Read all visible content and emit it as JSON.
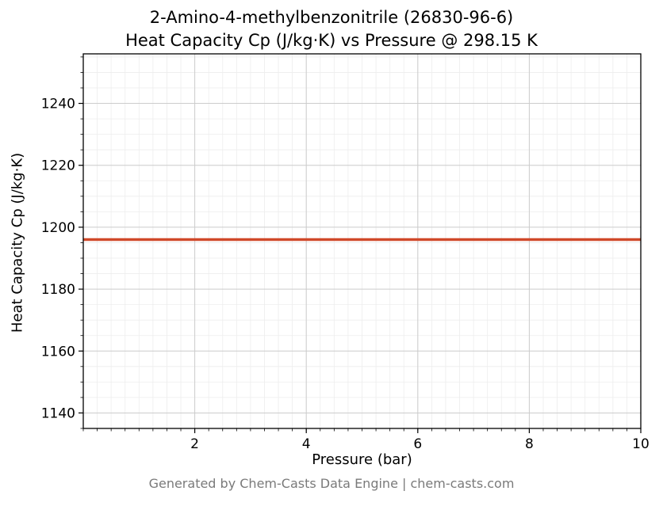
{
  "chart_data": {
    "type": "line",
    "title_line1": "2-Amino-4-methylbenzonitrile (26830-96-6)",
    "title_line2": "Heat Capacity Cp (J/kg·K) vs Pressure @ 298.15 K",
    "xlabel": "Pressure (bar)",
    "ylabel": "Heat Capacity Cp (J/kg·K)",
    "xlim": [
      0,
      10
    ],
    "ylim": [
      1135,
      1256
    ],
    "xticks": [
      2,
      4,
      6,
      8,
      10
    ],
    "yticks": [
      1140,
      1160,
      1180,
      1200,
      1220,
      1240
    ],
    "x_minor_step": 0.25,
    "y_minor_step": 5,
    "grid": true,
    "legend_position": "none",
    "series": [
      {
        "name": "Heat Capacity Cp",
        "x": [
          0,
          10
        ],
        "y": [
          1196,
          1196
        ],
        "color": "#d0492a",
        "line_width": 3.5
      }
    ],
    "constant_value": 1196
  },
  "footer": {
    "text": "Generated by Chem-Casts Data Engine | chem-casts.com"
  }
}
